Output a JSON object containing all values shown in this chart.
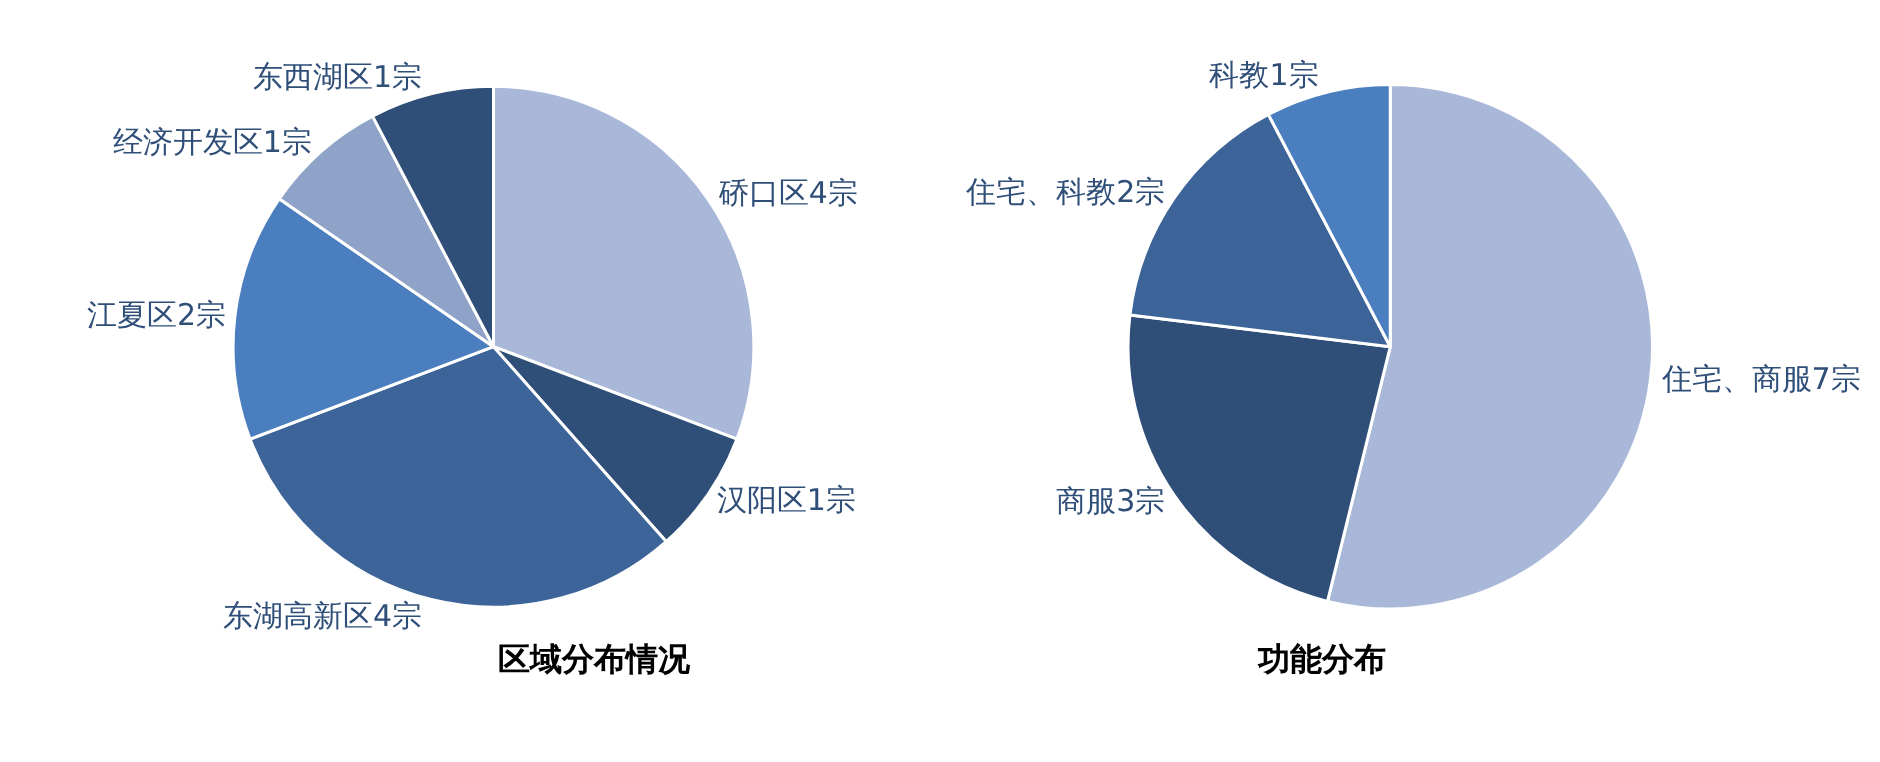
{
  "chart_data": [
    {
      "type": "pie",
      "title": "区域分布情况",
      "categories": [
        "硚口区4宗",
        "汉阳区1宗",
        "东湖高新区4宗",
        "江夏区2宗",
        "经济开发区1宗",
        "东西湖区1宗"
      ],
      "values": [
        4,
        1,
        4,
        2,
        1,
        1
      ],
      "colors": [
        "#a9b8d8",
        "#2f4e78",
        "#3d6499",
        "#4a7ebf",
        "#8fa3c9",
        "#2f4e78"
      ]
    },
    {
      "type": "pie",
      "title": "功能分布",
      "categories": [
        "住宅、商服7宗",
        "商服3宗",
        "住宅、科教2宗",
        "科教1宗"
      ],
      "values": [
        7,
        3,
        2,
        1
      ],
      "colors": [
        "#a9b8d8",
        "#2f4e78",
        "#3d6499",
        "#4a7ebf"
      ]
    }
  ]
}
